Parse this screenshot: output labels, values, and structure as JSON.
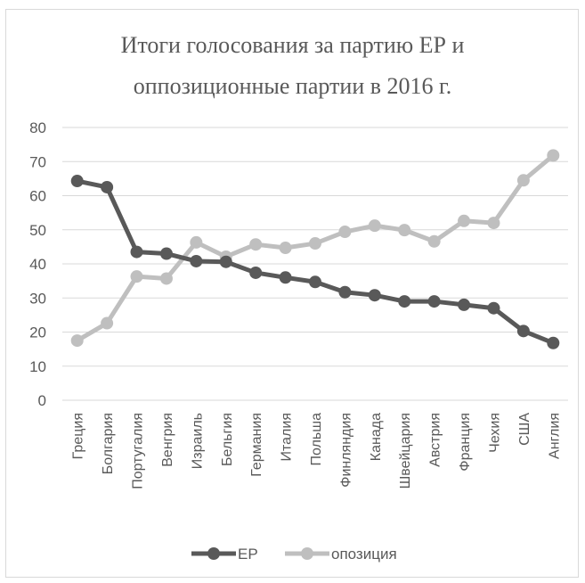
{
  "chart_data": {
    "type": "line",
    "title_line1": "Итоги голосования за партию ЕР и",
    "title_line2": "оппозиционные партии в 2016 г.",
    "categories": [
      "Греция",
      "Болгария",
      "Португалия",
      "Венгрия",
      "Израиль",
      "Бельгия",
      "Германия",
      "Италия",
      "Польша",
      "Финляндия",
      "Канада",
      "Швейцария",
      "Австрия",
      "Франция",
      "Чехия",
      "США",
      "Англия"
    ],
    "series": [
      {
        "name": "ЕР",
        "color": "#595959",
        "values": [
          64.3,
          62.5,
          43.5,
          43.0,
          40.8,
          40.6,
          37.4,
          36.0,
          34.7,
          31.7,
          30.8,
          29.0,
          29.0,
          28.0,
          27.0,
          20.3,
          16.8
        ]
      },
      {
        "name": "опозиция",
        "color": "#bfbfbf",
        "values": [
          17.5,
          22.6,
          36.3,
          35.7,
          46.3,
          42.1,
          45.7,
          44.7,
          46.0,
          49.4,
          51.2,
          49.9,
          46.6,
          52.6,
          52.0,
          64.5,
          71.8
        ]
      }
    ],
    "yticks": [
      "0",
      "10",
      "20",
      "30",
      "40",
      "50",
      "60",
      "70",
      "80"
    ],
    "ylim": [
      0,
      80
    ],
    "grid": true,
    "legend_position": "bottom"
  }
}
